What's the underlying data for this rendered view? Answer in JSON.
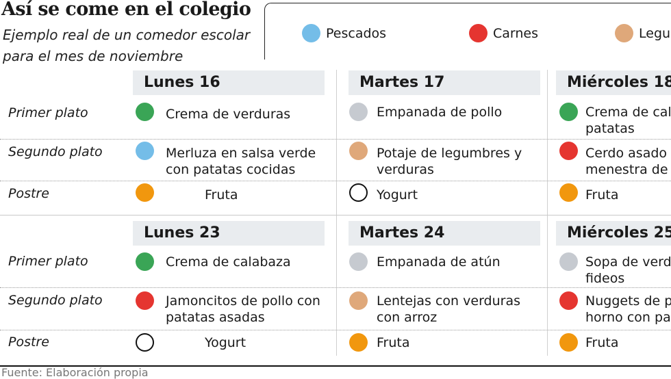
{
  "title": "Así se come en el colegio",
  "subtitle_line1": "Ejemplo real de un comedor escolar",
  "subtitle_line2": "para el mes de noviembre",
  "legend": [
    {
      "label": "Pescados",
      "color": "#74bde8"
    },
    {
      "label": "Carnes",
      "color": "#e53530"
    },
    {
      "label": "Legu",
      "color": "#dfa87a"
    }
  ],
  "row_labels": {
    "primero": "Primer plato",
    "segundo": "Segundo plato",
    "postre": "Postre"
  },
  "colors": {
    "verde": "#3aa556",
    "gris": "#c6cad0",
    "naranja": "#f1970e",
    "azul": "#74bde8",
    "rojo": "#e53530",
    "beige": "#dfa87a"
  },
  "week1": {
    "lunes": {
      "day": "Lunes 16",
      "primero": {
        "l1": "Crema de verduras",
        "l2": "",
        "dot": "verde"
      },
      "segundo": {
        "l1": "Merluza en salsa verde",
        "l2": "con patatas cocidas",
        "dot": "azul"
      },
      "postre": {
        "l1": "Fruta",
        "dot": "naranja"
      }
    },
    "martes": {
      "day": "Martes 17",
      "primero": {
        "l1": "Empanada de pollo",
        "l2": "",
        "dot": "gris"
      },
      "segundo": {
        "l1": "Potaje de legumbres y",
        "l2": "verduras",
        "dot": "beige"
      },
      "postre": {
        "l1": "Yogurt",
        "dot": "outline"
      }
    },
    "miercoles": {
      "day": "Miércoles 18",
      "primero": {
        "l1": "Crema de cal",
        "l2": "patatas",
        "dot": "verde"
      },
      "segundo": {
        "l1": "Cerdo asado",
        "l2": "menestra de",
        "dot": "rojo"
      },
      "postre": {
        "l1": "Fruta",
        "dot": "naranja"
      }
    }
  },
  "week2": {
    "lunes": {
      "day": "Lunes 23",
      "primero": {
        "l1": "Crema de calabaza",
        "l2": "",
        "dot": "verde"
      },
      "segundo": {
        "l1": "Jamoncitos de pollo con",
        "l2": "patatas asadas",
        "dot": "rojo"
      },
      "postre": {
        "l1": "Yogurt",
        "dot": "outline"
      }
    },
    "martes": {
      "day": "Martes 24",
      "primero": {
        "l1": "Empanada de atún",
        "l2": "",
        "dot": "gris"
      },
      "segundo": {
        "l1": "Lentejas con verduras",
        "l2": "con arroz",
        "dot": "beige"
      },
      "postre": {
        "l1": "Fruta",
        "dot": "naranja"
      }
    },
    "miercoles": {
      "day": "Miércoles 25",
      "primero": {
        "l1": "Sopa de verd",
        "l2": "fideos",
        "dot": "gris"
      },
      "segundo": {
        "l1": "Nuggets de p",
        "l2": "horno con pa",
        "dot": "rojo"
      },
      "postre": {
        "l1": "Fruta",
        "dot": "naranja"
      }
    }
  },
  "source": "Fuente: Elaboración propia"
}
